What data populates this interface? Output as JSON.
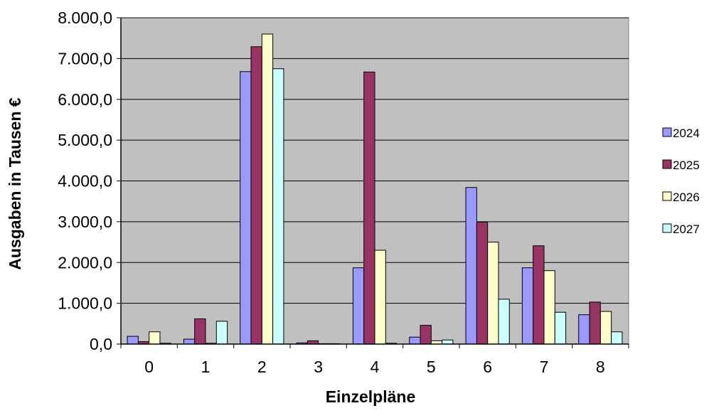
{
  "chart_data": {
    "type": "bar",
    "title": "",
    "xlabel": "Einzelpläne",
    "ylabel": "Ausgaben in Tausen €",
    "categories": [
      "0",
      "1",
      "2",
      "3",
      "4",
      "5",
      "6",
      "7",
      "8"
    ],
    "yticks": [
      "0,0",
      "1.000,0",
      "2.000,0",
      "3.000,0",
      "4.000,0",
      "5.000,0",
      "6.000,0",
      "7.000,0",
      "8.000,0"
    ],
    "ylim": [
      0,
      8000
    ],
    "grid": true,
    "legend_position": "right",
    "series": [
      {
        "name": "2024",
        "color": "#9999ff",
        "values": [
          190,
          120,
          6680,
          30,
          1870,
          170,
          3840,
          1870,
          720
        ]
      },
      {
        "name": "2025",
        "color": "#993366",
        "values": [
          60,
          620,
          7290,
          80,
          6670,
          460,
          2990,
          2410,
          1030
        ]
      },
      {
        "name": "2026",
        "color": "#ffffcc",
        "values": [
          300,
          20,
          7600,
          10,
          2300,
          80,
          2500,
          1800,
          800
        ]
      },
      {
        "name": "2027",
        "color": "#ccffff",
        "values": [
          20,
          560,
          6750,
          10,
          20,
          100,
          1100,
          780,
          300
        ]
      }
    ],
    "plot_bg": "#c0c0c0",
    "bar_stroke": "#000000"
  }
}
